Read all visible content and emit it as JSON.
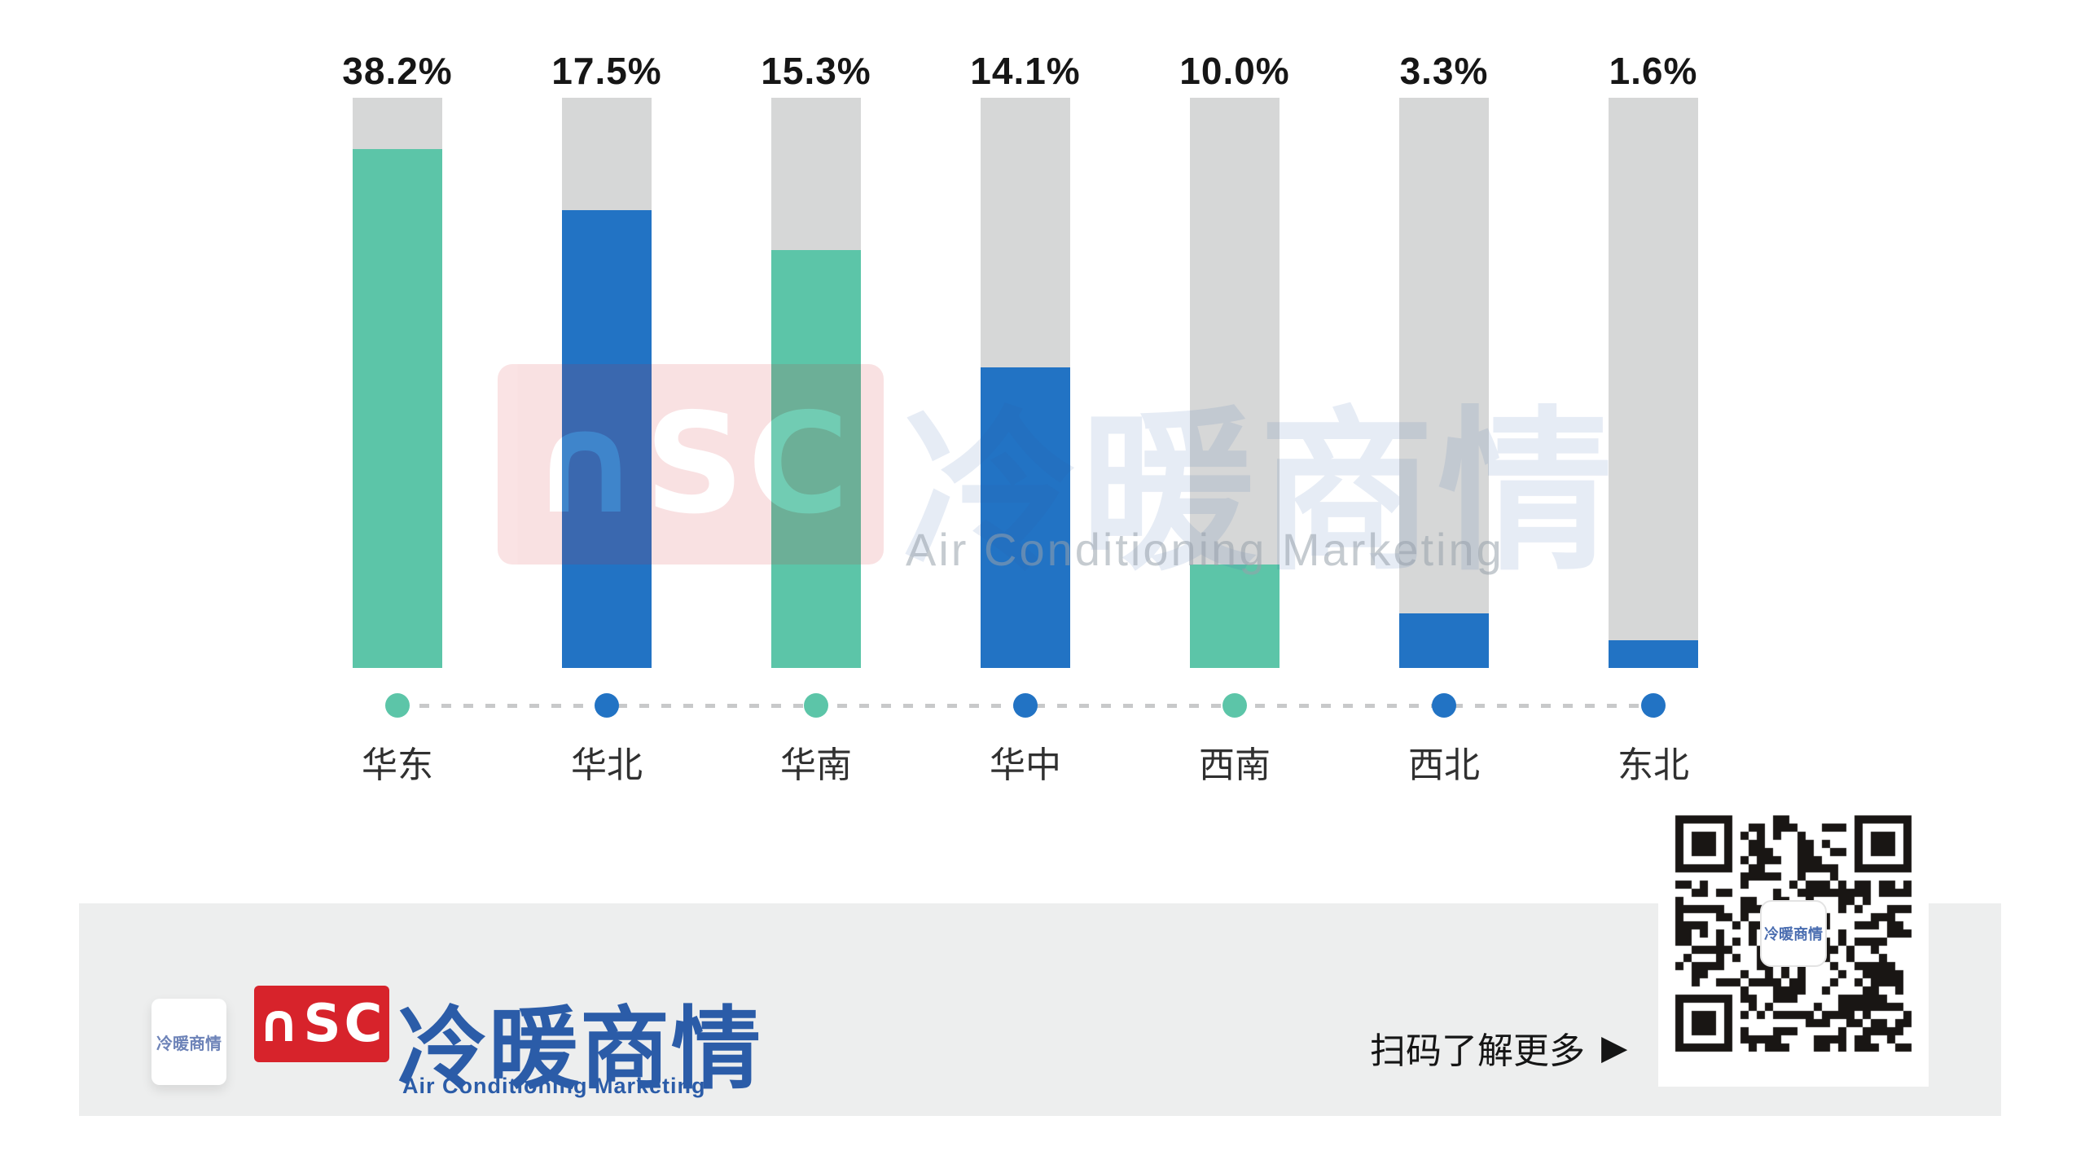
{
  "colors": {
    "teal": "#5CC5A8",
    "blue": "#2273C4",
    "track": "#D6D7D7",
    "dash": "#C8C9CA",
    "value_label_text": "#161616",
    "region_label_text": "#303030",
    "footer_bg": "#EDEEEE",
    "logo_red": "#D7232B",
    "logo_blue": "#2B5CA8",
    "watermark_blue": "#2B5EA7",
    "qr_dark": "#191614"
  },
  "chart_data": {
    "type": "bar",
    "title": "",
    "categories": [
      "华东",
      "华北",
      "华南",
      "华中",
      "西南",
      "西北",
      "东北"
    ],
    "values": [
      38.2,
      17.5,
      15.3,
      14.1,
      10.0,
      3.3,
      1.6
    ],
    "value_labels": [
      "38.2%",
      "17.5%",
      "15.3%",
      "14.1%",
      "10.0%",
      "3.3%",
      "1.6%"
    ],
    "series_colors": [
      "teal",
      "blue",
      "teal",
      "blue",
      "teal",
      "blue",
      "blue"
    ],
    "visual_fill_percent": [
      91.0,
      80.3,
      73.3,
      52.7,
      18.1,
      9.6,
      4.9
    ],
    "background_track": true,
    "legend": "none",
    "xlabel": "",
    "ylabel": "",
    "axis_style": "category dots joined by gray dashed line, dot color matches bar fill"
  },
  "watermark": {
    "nsc_letters": "∩SC",
    "chinese": "冷暖商情",
    "english": "Air Conditioning Marketing"
  },
  "footer": {
    "mini_logo_text": "冷暖商情",
    "nsc_letters": "∩SC",
    "brand_chinese": "冷暖商情",
    "brand_english": "Air Conditioning Marketing",
    "cta_text": "扫码了解更多",
    "cta_arrow": "▶"
  },
  "qr": {
    "center_text": "冷暖商情"
  }
}
